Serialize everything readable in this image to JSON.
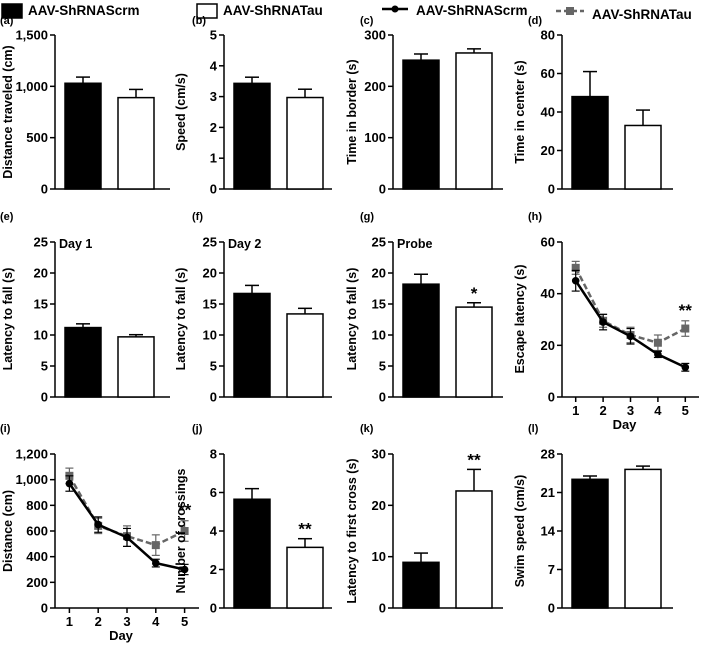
{
  "legend": [
    {
      "name": "AAV-ShRNAScrm",
      "kind": "bar-filled",
      "color": "#000000"
    },
    {
      "name": "AAV-ShRNATau",
      "kind": "bar-open",
      "color": "#ffffff"
    },
    {
      "name": "AAV-ShRNAScrm",
      "kind": "line-solid",
      "color": "#000000"
    },
    {
      "name": "AAV-ShRNATau",
      "kind": "line-dashed",
      "color": "#666666"
    }
  ],
  "chart_data": [
    {
      "panel": "(a)",
      "type": "bar",
      "ylabel": "Distance traveled (cm)",
      "ylim": [
        0,
        1500
      ],
      "yticks": [
        0,
        500,
        1000,
        1500
      ],
      "ytick_labels": [
        "0",
        "500",
        "1,000",
        "1,500"
      ],
      "groups": [
        "AAV-ShRNAScrm",
        "AAV-ShRNATau"
      ],
      "values": [
        1030,
        890
      ],
      "errors": [
        60,
        80
      ],
      "annotation": "",
      "significance": ""
    },
    {
      "panel": "(b)",
      "type": "bar",
      "ylabel": "Speed (cm/s)",
      "ylim": [
        0,
        5
      ],
      "yticks": [
        0,
        1,
        2,
        3,
        4,
        5
      ],
      "ytick_labels": [
        "0",
        "1",
        "2",
        "3",
        "4",
        "5"
      ],
      "groups": [
        "AAV-ShRNAScrm",
        "AAV-ShRNATau"
      ],
      "values": [
        3.43,
        2.97
      ],
      "errors": [
        0.2,
        0.27
      ],
      "annotation": "",
      "significance": ""
    },
    {
      "panel": "(c)",
      "type": "bar",
      "ylabel": "Time in border (s)",
      "ylim": [
        0,
        300
      ],
      "yticks": [
        0,
        100,
        200,
        300
      ],
      "ytick_labels": [
        "0",
        "100",
        "200",
        "300"
      ],
      "groups": [
        "AAV-ShRNAScrm",
        "AAV-ShRNATau"
      ],
      "values": [
        251,
        265
      ],
      "errors": [
        12,
        8
      ],
      "annotation": "",
      "significance": ""
    },
    {
      "panel": "(d)",
      "type": "bar",
      "ylabel": "Time in center (s)",
      "ylim": [
        0,
        80
      ],
      "yticks": [
        0,
        20,
        40,
        60,
        80
      ],
      "ytick_labels": [
        "0",
        "20",
        "40",
        "60",
        "80"
      ],
      "groups": [
        "AAV-ShRNAScrm",
        "AAV-ShRNATau"
      ],
      "values": [
        48,
        33
      ],
      "errors": [
        13,
        8
      ],
      "annotation": "",
      "significance": ""
    },
    {
      "panel": "(e)",
      "type": "bar",
      "ylabel": "Latency to fall (s)",
      "ylim": [
        0,
        25
      ],
      "yticks": [
        0,
        5,
        10,
        15,
        20,
        25
      ],
      "ytick_labels": [
        "0",
        "5",
        "10",
        "15",
        "20",
        "25"
      ],
      "groups": [
        "AAV-ShRNAScrm",
        "AAV-ShRNATau"
      ],
      "values": [
        11.2,
        9.7
      ],
      "errors": [
        0.6,
        0.35
      ],
      "annotation": "Day 1",
      "significance": ""
    },
    {
      "panel": "(f)",
      "type": "bar",
      "ylabel": "Latency to fall (s)",
      "ylim": [
        0,
        25
      ],
      "yticks": [
        0,
        5,
        10,
        15,
        20,
        25
      ],
      "ytick_labels": [
        "0",
        "5",
        "10",
        "15",
        "20",
        "25"
      ],
      "groups": [
        "AAV-ShRNAScrm",
        "AAV-ShRNATau"
      ],
      "values": [
        16.7,
        13.4
      ],
      "errors": [
        1.3,
        0.9
      ],
      "annotation": "Day 2",
      "significance": ""
    },
    {
      "panel": "(g)",
      "type": "bar",
      "ylabel": "Latency to fall (s)",
      "ylim": [
        0,
        25
      ],
      "yticks": [
        0,
        5,
        10,
        15,
        20,
        25
      ],
      "ytick_labels": [
        "0",
        "5",
        "10",
        "15",
        "20",
        "25"
      ],
      "groups": [
        "AAV-ShRNAScrm",
        "AAV-ShRNATau"
      ],
      "values": [
        18.2,
        14.5
      ],
      "errors": [
        1.6,
        0.7
      ],
      "annotation": "Probe",
      "significance": "*"
    },
    {
      "panel": "(h)",
      "type": "line",
      "ylabel": "Escape latency (s)",
      "xlabel": "Day",
      "ylim": [
        0,
        60
      ],
      "yticks": [
        0,
        20,
        40,
        60
      ],
      "ytick_labels": [
        "0",
        "20",
        "40",
        "60"
      ],
      "x": [
        1,
        2,
        3,
        4,
        5
      ],
      "xlim": [
        0.5,
        5.5
      ],
      "series": [
        {
          "name": "AAV-ShRNAScrm",
          "style": "solid",
          "values": [
            45,
            29,
            23.5,
            16.5,
            11.5
          ],
          "errors": [
            4,
            3,
            3,
            1.2,
            1.5
          ]
        },
        {
          "name": "AAV-ShRNATau",
          "style": "dashed",
          "values": [
            50,
            29.5,
            24,
            21,
            26.5
          ],
          "errors": [
            2.5,
            2.5,
            3,
            3,
            3
          ]
        }
      ],
      "significance": "**"
    },
    {
      "panel": "(i)",
      "type": "line",
      "ylabel": "Distance (cm)",
      "xlabel": "Day",
      "ylim": [
        0,
        1200
      ],
      "yticks": [
        0,
        200,
        400,
        600,
        800,
        1000,
        1200
      ],
      "ytick_labels": [
        "0",
        "200",
        "400",
        "600",
        "800",
        "1,000",
        "1,200"
      ],
      "x": [
        1,
        2,
        3,
        4,
        5
      ],
      "xlim": [
        0.5,
        5.5
      ],
      "series": [
        {
          "name": "AAV-ShRNAScrm",
          "style": "solid",
          "values": [
            970,
            650,
            550,
            350,
            300
          ],
          "errors": [
            60,
            60,
            70,
            30,
            40
          ]
        },
        {
          "name": "AAV-ShRNATau",
          "style": "dashed",
          "values": [
            1030,
            640,
            560,
            490,
            600
          ],
          "errors": [
            60,
            60,
            80,
            80,
            80
          ]
        }
      ],
      "significance": "**"
    },
    {
      "panel": "(j)",
      "type": "bar",
      "ylabel": "Number of crossings",
      "ylim": [
        0,
        8
      ],
      "yticks": [
        0,
        2,
        4,
        6,
        8
      ],
      "ytick_labels": [
        "0",
        "2",
        "4",
        "6",
        "8"
      ],
      "groups": [
        "AAV-ShRNAScrm",
        "AAV-ShRNATau"
      ],
      "values": [
        5.65,
        3.15
      ],
      "errors": [
        0.55,
        0.45
      ],
      "annotation": "",
      "significance": "**"
    },
    {
      "panel": "(k)",
      "type": "bar",
      "ylabel": "Latency to first cross (s)",
      "ylim": [
        0,
        30
      ],
      "yticks": [
        0,
        10,
        20,
        30
      ],
      "ytick_labels": [
        "0",
        "10",
        "20",
        "30"
      ],
      "groups": [
        "AAV-ShRNAScrm",
        "AAV-ShRNATau"
      ],
      "values": [
        8.9,
        22.8
      ],
      "errors": [
        1.8,
        4.2
      ],
      "annotation": "",
      "significance": "**"
    },
    {
      "panel": "(l)",
      "type": "bar",
      "ylabel": "Swim  speed (cm/s)",
      "ylim": [
        0,
        28
      ],
      "yticks": [
        0,
        7,
        14,
        21,
        28
      ],
      "ytick_labels": [
        "0",
        "7",
        "14",
        "21",
        "28"
      ],
      "groups": [
        "AAV-ShRNAScrm",
        "AAV-ShRNATau"
      ],
      "values": [
        23.4,
        25.2
      ],
      "errors": [
        0.6,
        0.6
      ],
      "annotation": "",
      "significance": ""
    }
  ]
}
